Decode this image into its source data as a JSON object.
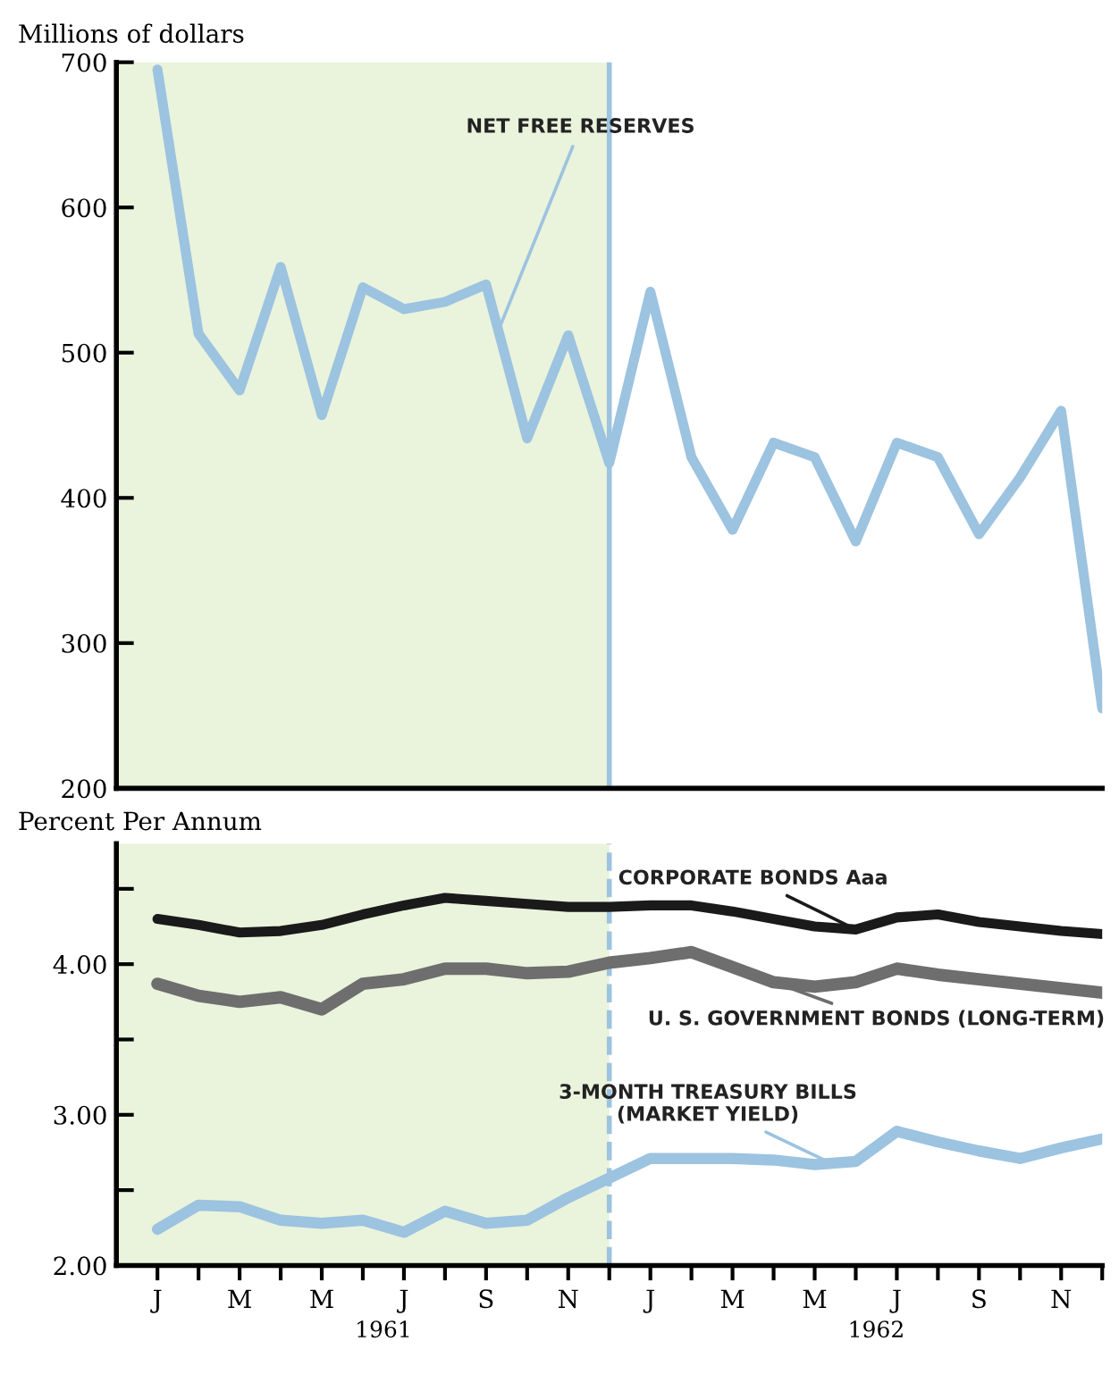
{
  "chart_data": [
    {
      "type": "line",
      "ylabel": "Millions of dollars",
      "categories": [
        null,
        null,
        null,
        null,
        null,
        null,
        null,
        null,
        null,
        null,
        null,
        null,
        null,
        null,
        null,
        null,
        null,
        null,
        null,
        null,
        null,
        null,
        null,
        null
      ],
      "series": [
        {
          "name": "NET FREE RESERVES",
          "color": "#9cc3e0",
          "values": [
            695,
            513,
            474,
            559,
            457,
            545,
            530,
            535,
            547,
            441,
            512,
            424,
            542,
            428,
            378,
            438,
            428,
            370,
            438,
            428,
            375,
            414,
            460,
            255
          ]
        }
      ],
      "ylim": [
        200,
        700
      ],
      "yticks": [
        200,
        300,
        400,
        500,
        600,
        700
      ],
      "tick_labels": "y",
      "grid": false,
      "legend": false,
      "marker": "none",
      "line_style": "solid"
    },
    {
      "type": "line",
      "ylabel": "Percent Per Annum",
      "categories": [
        "J",
        null,
        "M",
        null,
        "M",
        null,
        "J",
        null,
        "S",
        null,
        "N",
        null,
        "J",
        null,
        "M",
        null,
        "M",
        null,
        "J",
        null,
        "S",
        null,
        "N",
        null
      ],
      "series": [
        {
          "name": "CORPORATE BONDS Aaa",
          "color": "#1a1a1a",
          "values": [
            4.3,
            4.26,
            4.21,
            4.22,
            4.26,
            4.33,
            4.39,
            4.44,
            4.42,
            4.4,
            4.38,
            4.38,
            4.39,
            4.39,
            4.35,
            4.3,
            4.25,
            4.23,
            4.31,
            4.33,
            4.28,
            4.25,
            4.22,
            4.2
          ]
        },
        {
          "name": "U. S. GOVERNMENT BONDS (LONG-TERM)",
          "color": "#6e6e6e",
          "values": [
            3.87,
            3.79,
            3.75,
            3.78,
            3.7,
            3.87,
            3.9,
            3.97,
            3.97,
            3.94,
            3.95,
            4.01,
            4.04,
            4.08,
            3.98,
            3.88,
            3.85,
            3.88,
            3.97,
            3.93,
            3.9,
            3.87,
            3.84,
            3.81
          ]
        },
        {
          "name": "3-MONTH TREASURY BILLS\n(MARKET YIELD)",
          "color": "#9cc3e0",
          "values": [
            2.24,
            2.4,
            2.39,
            2.3,
            2.28,
            2.3,
            2.22,
            2.36,
            2.28,
            2.3,
            2.45,
            2.58,
            2.71,
            2.71,
            2.71,
            2.7,
            2.67,
            2.69,
            2.89,
            2.82,
            2.76,
            2.71,
            2.78,
            2.84
          ]
        }
      ],
      "ylim": [
        2.0,
        4.8
      ],
      "yticks": [
        {
          "value": 2.0,
          "label": "2.00"
        },
        {
          "value": 2.5,
          "label": null
        },
        {
          "value": 3.0,
          "label": "3.00"
        },
        {
          "value": 3.5,
          "label": null
        },
        {
          "value": 4.0,
          "label": "4.00"
        },
        {
          "value": 4.5,
          "label": null
        }
      ],
      "annotations": [
        "1961",
        "1962"
      ],
      "grid": false,
      "legend": false,
      "marker": "none",
      "line_style": "solid"
    }
  ]
}
